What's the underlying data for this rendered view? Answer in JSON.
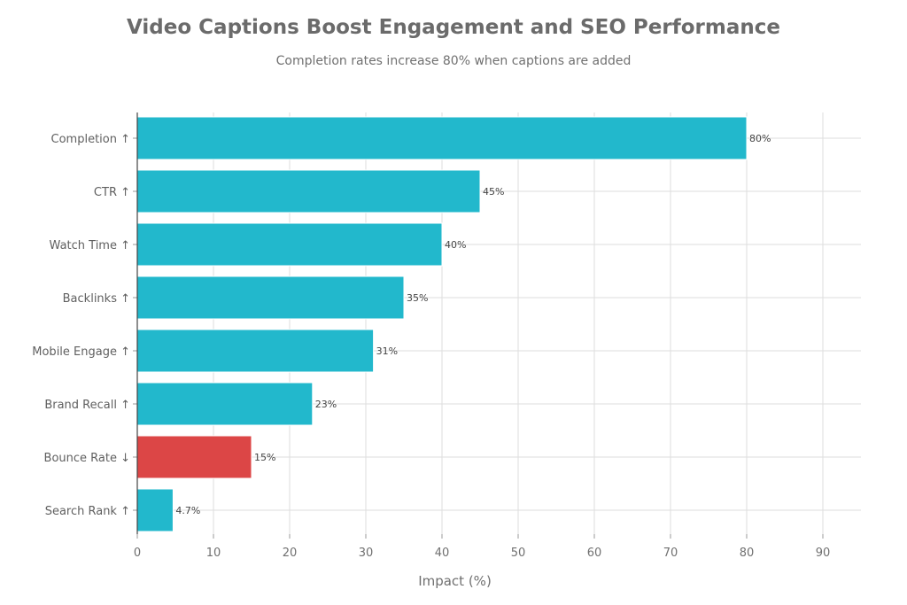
{
  "chart_data": {
    "type": "bar",
    "orientation": "horizontal",
    "title": "Video Captions Boost Engagement and SEO Performance",
    "subtitle": "Completion rates increase 80% when captions are added",
    "xlabel": "Impact (%)",
    "ylabel": "",
    "xlim": [
      0,
      95
    ],
    "xticks": [
      0,
      10,
      20,
      30,
      40,
      50,
      60,
      70,
      80,
      90
    ],
    "grid": true,
    "categories": [
      "Completion ↑",
      "CTR ↑",
      "Watch Time ↑",
      "Backlinks ↑",
      "Mobile Engage ↑",
      "Brand Recall ↑",
      "Bounce Rate ↓",
      "Search Rank ↑"
    ],
    "values": [
      80,
      45,
      40,
      35,
      31,
      23,
      15,
      4.7
    ],
    "data_labels": [
      "80%",
      "45%",
      "40%",
      "35%",
      "31%",
      "23%",
      "15%",
      "4.7%"
    ],
    "colors": [
      "#22b8cc",
      "#22b8cc",
      "#22b8cc",
      "#22b8cc",
      "#22b8cc",
      "#22b8cc",
      "#dc4646",
      "#22b8cc"
    ]
  }
}
